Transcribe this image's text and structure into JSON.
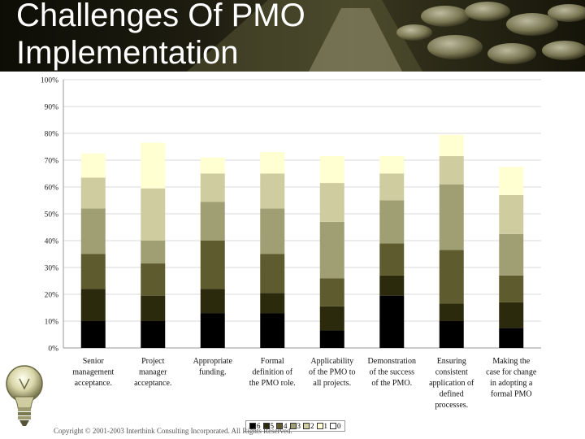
{
  "header": {
    "title": "Challenges Of PMO Implementation"
  },
  "footer": {
    "copyright": "Copyright © 2001-2003 Interthink Consulting Incorporated. All Rights Reserved."
  },
  "chart_data": {
    "type": "bar",
    "stacked": true,
    "ylim": [
      0,
      100
    ],
    "yticks": [
      "0%",
      "10%",
      "20%",
      "30%",
      "40%",
      "50%",
      "60%",
      "70%",
      "80%",
      "90%",
      "100%"
    ],
    "grid": true,
    "legend_position": "bottom",
    "categories": [
      [
        "Senior",
        "management",
        "acceptance."
      ],
      [
        "Project",
        "manager",
        "acceptance."
      ],
      [
        "Appropriate",
        "funding."
      ],
      [
        "Formal",
        "definition of",
        "the PMO role."
      ],
      [
        "Applicability",
        "of the PMO to",
        "all projects."
      ],
      [
        "Demonstration",
        "of the success",
        "of the PMO."
      ],
      [
        "Ensuring",
        "consistent",
        "application of",
        "defined",
        "processes."
      ],
      [
        "Making the",
        "case for change",
        "in adopting a",
        "formal PMO"
      ]
    ],
    "series": [
      {
        "name": "6",
        "color": "#000000",
        "values": [
          10,
          10,
          13,
          13,
          6.5,
          19.5,
          10,
          7.5
        ]
      },
      {
        "name": "5",
        "color": "#2b2a0c",
        "values": [
          12,
          9.5,
          9,
          7.5,
          9,
          7.5,
          6.5,
          9.5
        ]
      },
      {
        "name": "4",
        "color": "#5e5b2e",
        "values": [
          13,
          12,
          18,
          14.5,
          10.5,
          12,
          20,
          10
        ]
      },
      {
        "name": "3",
        "color": "#a09f74",
        "values": [
          17,
          8.5,
          14.5,
          17,
          21,
          16,
          24.5,
          15.5
        ]
      },
      {
        "name": "2",
        "color": "#cfcd9f",
        "values": [
          11.5,
          19.5,
          10.5,
          13,
          14.5,
          10,
          10.5,
          14.5
        ]
      },
      {
        "name": "1",
        "color": "#ffffd2",
        "values": [
          9,
          17,
          6,
          8,
          10,
          6.5,
          8,
          10.5
        ]
      },
      {
        "name": "0",
        "color": "#ffffff",
        "values": [
          0,
          0,
          0,
          0,
          0,
          0,
          0,
          0
        ]
      }
    ]
  }
}
